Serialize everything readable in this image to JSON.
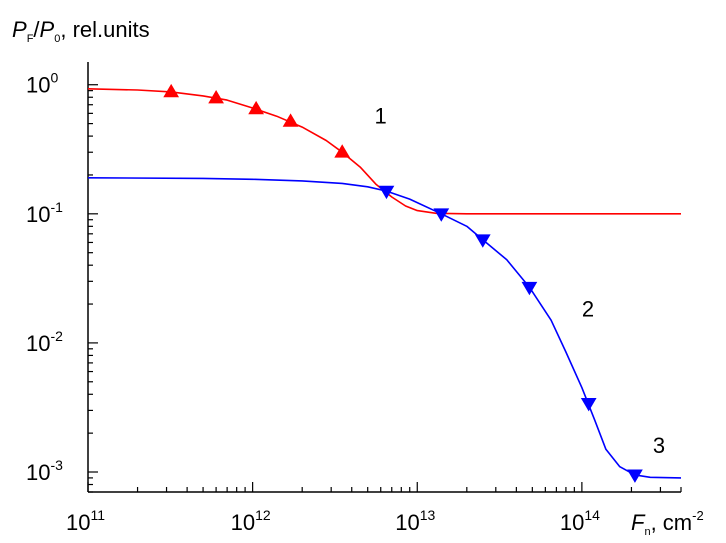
{
  "chart_data": {
    "type": "line",
    "x_scale": "log",
    "y_scale": "log",
    "xlim": [
      100000000000.0,
      400000000000000.0
    ],
    "ylim": [
      0.0007,
      1.5
    ],
    "grid": false,
    "ylabel": {
      "main": "P",
      "sub1": "F",
      "slash": "/",
      "main2": "P",
      "sub2": "0",
      "suffix": ", rel.units"
    },
    "xlabel": {
      "main": "F",
      "sub": "n",
      "suffix": ", cm",
      "sup": "-2"
    },
    "x_ticks": [
      {
        "value": 100000000000.0,
        "base": "10",
        "exp": "11"
      },
      {
        "value": 1000000000000.0,
        "base": "10",
        "exp": "12"
      },
      {
        "value": 10000000000000.0,
        "base": "10",
        "exp": "13"
      },
      {
        "value": 100000000000000.0,
        "base": "10",
        "exp": "14"
      }
    ],
    "y_ticks": [
      {
        "value": 1,
        "base": "10",
        "exp": "0"
      },
      {
        "value": 0.1,
        "base": "10",
        "exp": "-1"
      },
      {
        "value": 0.01,
        "base": "10",
        "exp": "-2"
      },
      {
        "value": 0.001,
        "base": "10",
        "exp": "-3"
      }
    ],
    "series": [
      {
        "name": "1",
        "color": "#ff0000",
        "marker": "triangle-up",
        "points": [
          [
            320000000000.0,
            0.88
          ],
          [
            600000000000.0,
            0.79
          ],
          [
            1050000000000.0,
            0.65
          ],
          [
            1700000000000.0,
            0.52
          ],
          [
            3500000000000.0,
            0.3
          ]
        ],
        "curve": [
          [
            100000000000.0,
            0.93
          ],
          [
            200000000000.0,
            0.91
          ],
          [
            320000000000.0,
            0.88
          ],
          [
            500000000000.0,
            0.82
          ],
          [
            700000000000.0,
            0.76
          ],
          [
            1000000000000.0,
            0.66
          ],
          [
            1400000000000.0,
            0.57
          ],
          [
            2000000000000.0,
            0.47
          ],
          [
            2800000000000.0,
            0.37
          ],
          [
            3500000000000.0,
            0.3
          ],
          [
            4500000000000.0,
            0.23
          ],
          [
            5600000000000.0,
            0.17
          ],
          [
            7000000000000.0,
            0.135
          ],
          [
            8500000000000.0,
            0.115
          ],
          [
            10000000000000.0,
            0.106
          ],
          [
            13000000000000.0,
            0.101
          ],
          [
            20000000000000.0,
            0.1
          ],
          [
            400000000000000.0,
            0.1
          ]
        ]
      },
      {
        "name": "2",
        "color": "#0000ff",
        "marker": "triangle-down",
        "points": [
          [
            6500000000000.0,
            0.15
          ],
          [
            14000000000000.0,
            0.1
          ],
          [
            25000000000000.0,
            0.063
          ],
          [
            48000000000000.0,
            0.027
          ],
          [
            110000000000000.0,
            0.0034
          ],
          [
            210000000000000.0,
            0.00095
          ]
        ],
        "curve": [
          [
            100000000000.0,
            0.19
          ],
          [
            500000000000.0,
            0.188
          ],
          [
            1000000000000.0,
            0.185
          ],
          [
            2000000000000.0,
            0.18
          ],
          [
            3500000000000.0,
            0.172
          ],
          [
            5000000000000.0,
            0.162
          ],
          [
            6500000000000.0,
            0.15
          ],
          [
            9000000000000.0,
            0.13
          ],
          [
            14000000000000.0,
            0.1
          ],
          [
            20000000000000.0,
            0.08
          ],
          [
            25000000000000.0,
            0.063
          ],
          [
            35000000000000.0,
            0.044
          ],
          [
            48000000000000.0,
            0.027
          ],
          [
            65000000000000.0,
            0.015
          ],
          [
            80000000000000.0,
            0.0085
          ],
          [
            100000000000000.0,
            0.0045
          ],
          [
            120000000000000.0,
            0.0025
          ],
          [
            140000000000000.0,
            0.0015
          ],
          [
            170000000000000.0,
            0.0011
          ],
          [
            210000000000000.0,
            0.00095
          ],
          [
            260000000000000.0,
            0.00091
          ],
          [
            400000000000000.0,
            0.0009
          ]
        ]
      }
    ],
    "annotations": [
      {
        "text": "1",
        "x": 5500000000000.0,
        "y": 0.5
      },
      {
        "text": "2",
        "x": 100000000000000.0,
        "y": 0.016
      },
      {
        "text": "3",
        "x": 270000000000000.0,
        "y": 0.0014
      }
    ]
  }
}
